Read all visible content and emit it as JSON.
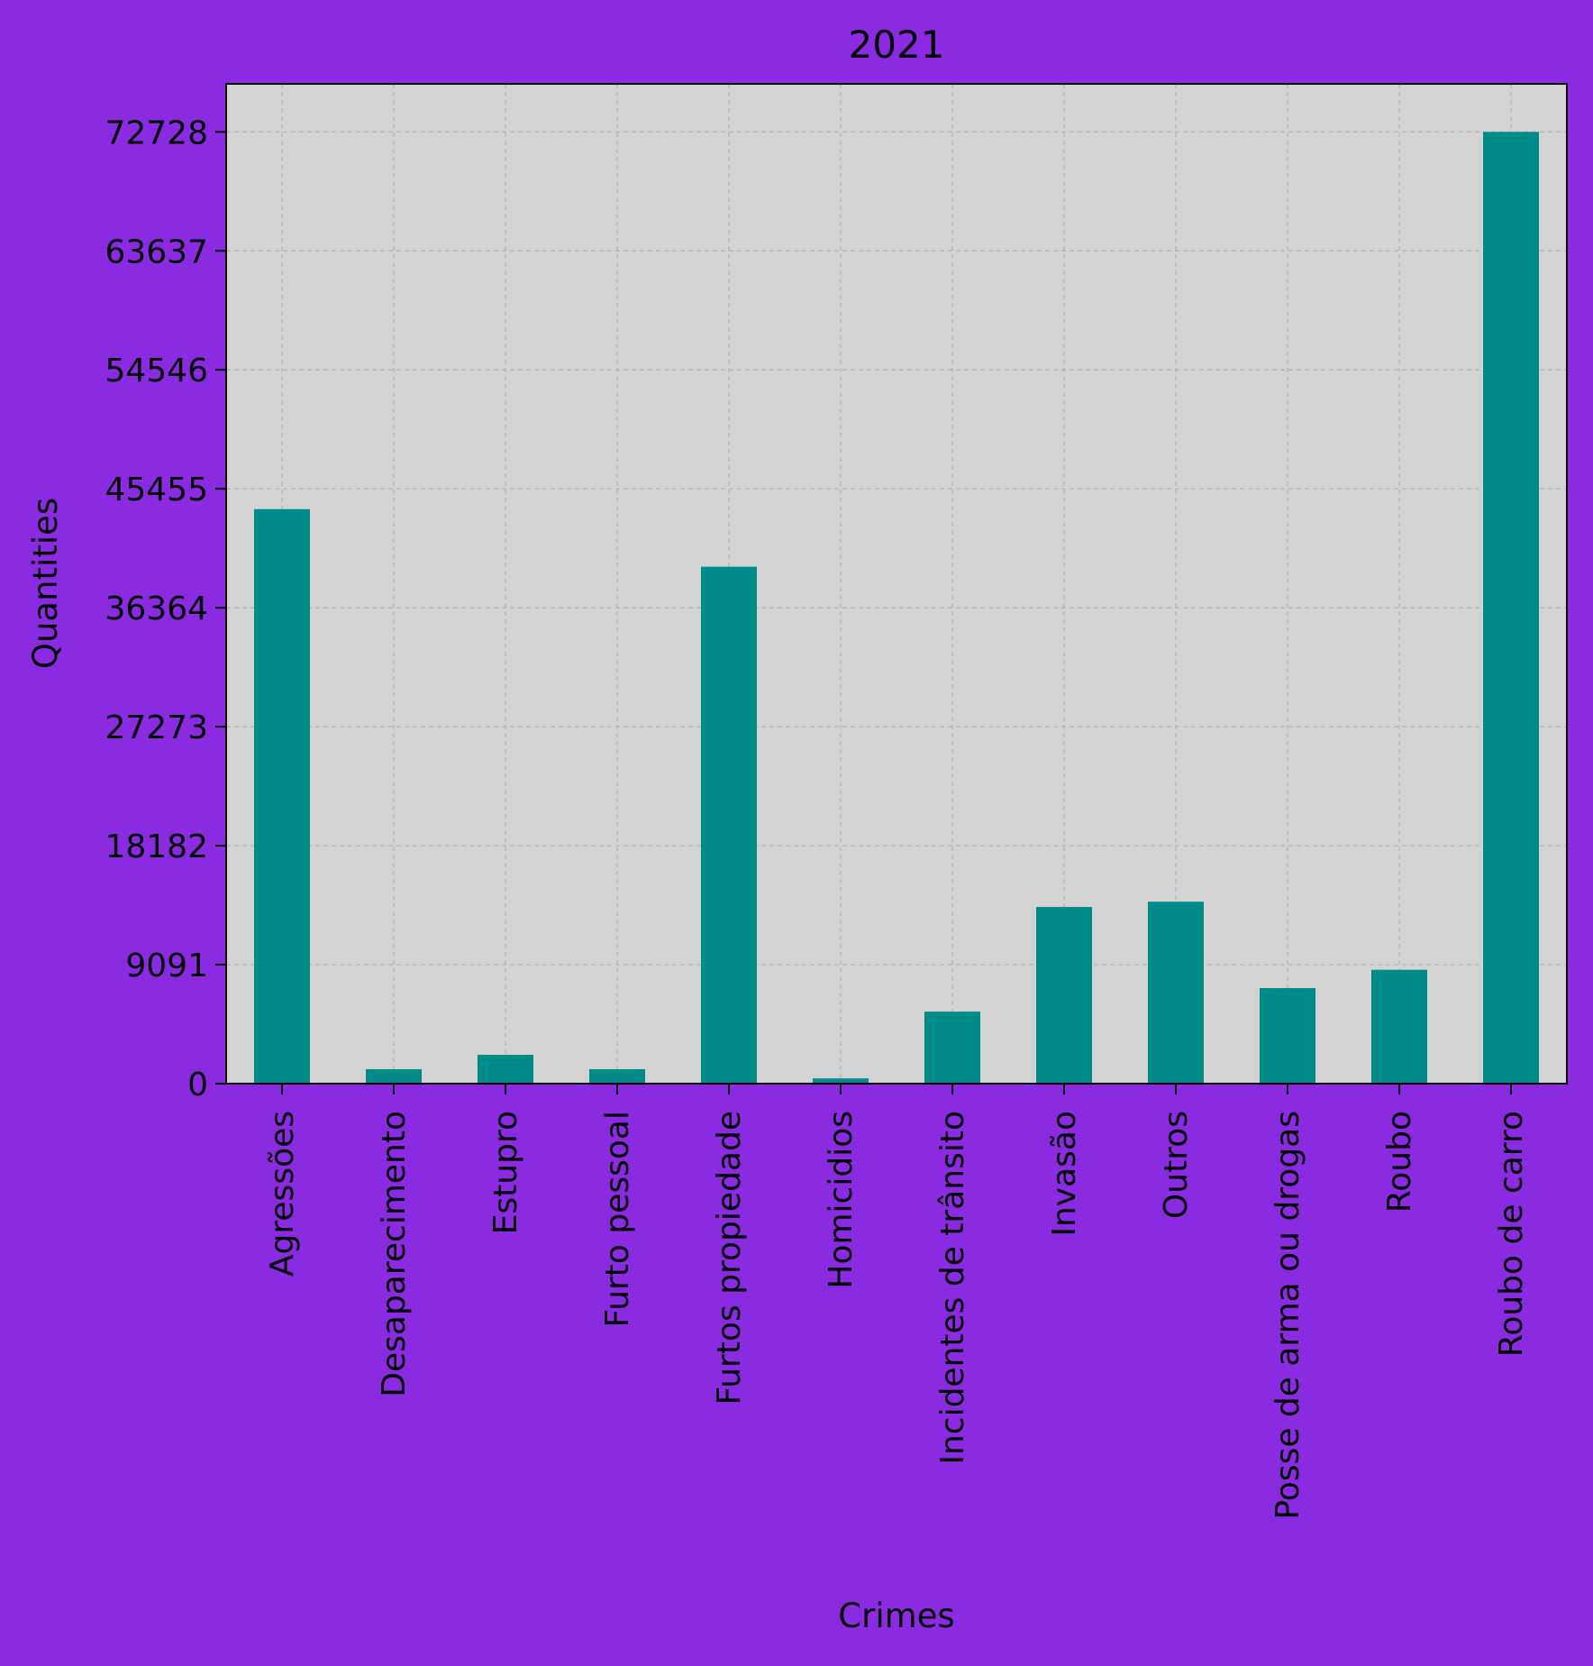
{
  "chart_data": {
    "type": "bar",
    "title": "2021",
    "xlabel": "Crimes",
    "ylabel": "Quantities",
    "categories": [
      "Agressões",
      "Desaparecimento",
      "Estupro",
      "Furto pessoal",
      "Furtos propiedade",
      "Homicidios",
      "Incidentes de trânsito",
      "Invasão",
      "Outros",
      "Posse de arma ou drogas",
      "Roubo",
      "Roubo de carro"
    ],
    "values": [
      43900,
      1100,
      2200,
      1100,
      39500,
      400,
      5500,
      13500,
      13900,
      7300,
      8700,
      72728
    ],
    "yticks": [
      0,
      9091,
      18182,
      27273,
      36364,
      45455,
      54546,
      63637,
      72728
    ],
    "ylim": [
      0,
      76400
    ],
    "grid": true,
    "colors": {
      "background": "#8a2be2",
      "plot_background": "#d3d3d3",
      "bar": "#008b8b",
      "grid": "#b0b0b0"
    }
  }
}
